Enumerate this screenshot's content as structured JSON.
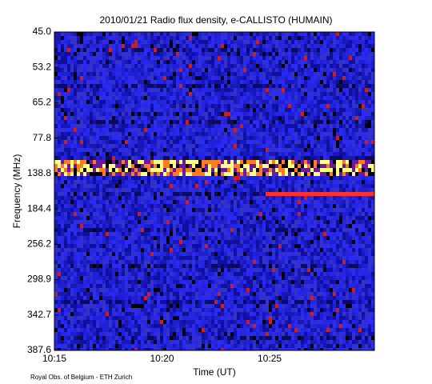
{
  "chart_data": {
    "type": "spectrogram",
    "title": "2010/01/21  Radio flux density, e-CALLISTO (HUMAIN)",
    "x_label": "Time (UT)",
    "y_label": "Frequency (MHz)",
    "x_tick_labels": [
      "10:15",
      "10:20",
      "10:25"
    ],
    "y_tick_labels": [
      "45.0",
      "53.2",
      "65.2",
      "77.8",
      "138.8",
      "184.4",
      "256.2",
      "298.9",
      "342.7",
      "387.6"
    ],
    "footer": "Royal Obs. of Belgium - ETH Zurich"
  }
}
